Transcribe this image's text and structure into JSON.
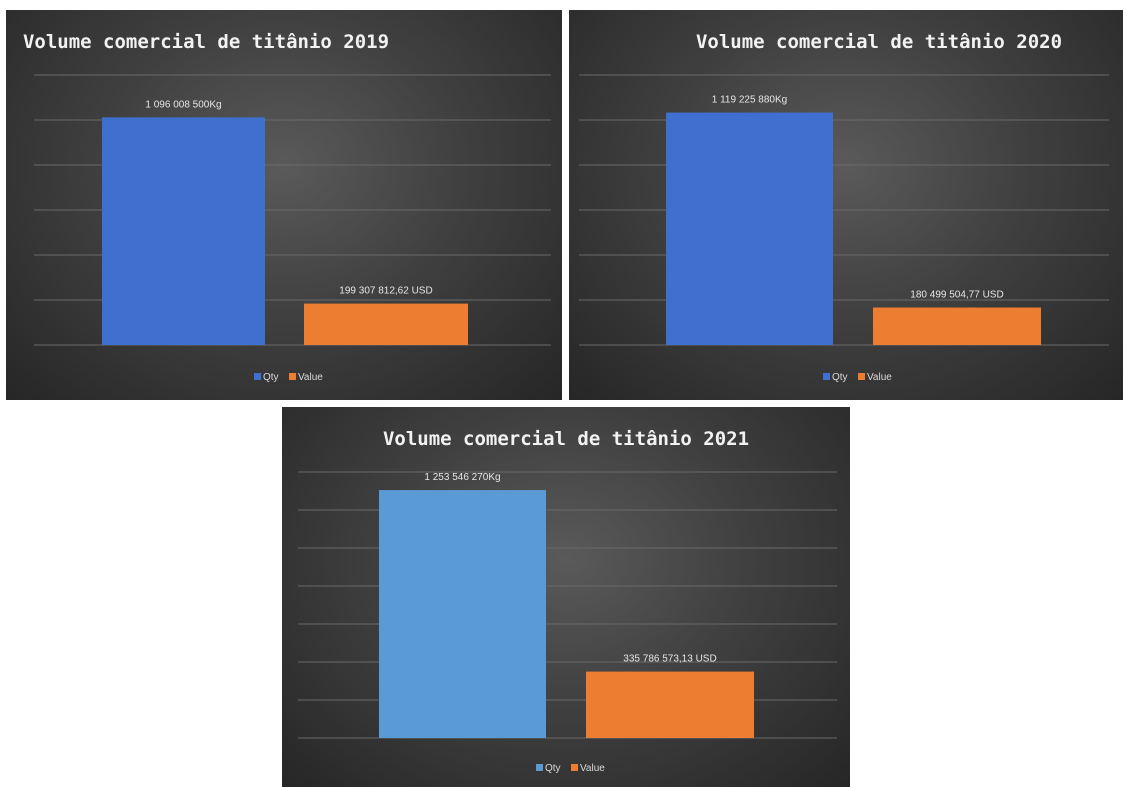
{
  "chart_data": [
    {
      "type": "bar",
      "title": "Volume comercial de titânio 2019",
      "categories": [
        "Qty",
        "Value"
      ],
      "values": [
        1096008500,
        199307812.62
      ],
      "data_labels": [
        "1 096 008 500Kg",
        "199 307 812,62 USD"
      ],
      "legend": [
        "Qty",
        "Value"
      ],
      "legend_position": "bottom",
      "grid": true,
      "colors": [
        "#3f6fcf",
        "#ed7d31"
      ]
    },
    {
      "type": "bar",
      "title": "Volume comercial de titânio 2020",
      "categories": [
        "Qty",
        "Value"
      ],
      "values": [
        1119225880,
        180499504.77
      ],
      "data_labels": [
        "1 119 225 880Kg",
        "180 499 504,77 USD"
      ],
      "legend": [
        "Qty",
        "Value"
      ],
      "legend_position": "bottom",
      "grid": true,
      "colors": [
        "#3f6fcf",
        "#ed7d31"
      ]
    },
    {
      "type": "bar",
      "title": "Volume comercial de titânio 2021",
      "categories": [
        "Qty",
        "Value"
      ],
      "values": [
        1253546270,
        335786573.13
      ],
      "data_labels": [
        "1 253 546 270Kg",
        "335 786 573,13 USD"
      ],
      "legend": [
        "Qty",
        "Value"
      ],
      "legend_position": "bottom",
      "grid": true,
      "colors": [
        "#5b9bd5",
        "#ed7d31"
      ]
    }
  ]
}
